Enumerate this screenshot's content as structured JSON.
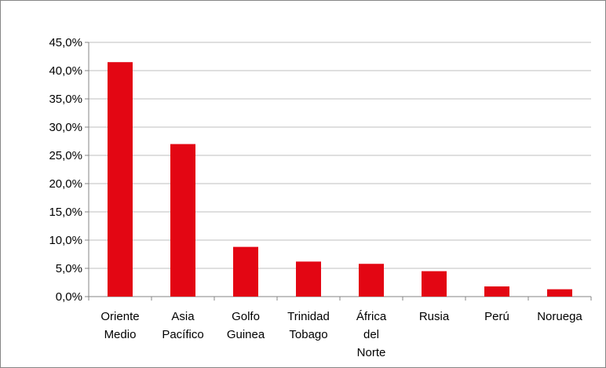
{
  "chart_data": {
    "type": "bar",
    "title": "",
    "xlabel": "",
    "ylabel": "",
    "categories": [
      [
        "Oriente",
        "Medio"
      ],
      [
        "Asia",
        "Pacífico"
      ],
      [
        "Golfo",
        "Guinea"
      ],
      [
        "Trinidad",
        "Tobago"
      ],
      [
        "África",
        "del",
        "Norte"
      ],
      [
        "Rusia"
      ],
      [
        "Perú"
      ],
      [
        "Noruega"
      ]
    ],
    "values": [
      41.5,
      27.0,
      8.8,
      6.2,
      5.8,
      4.5,
      1.8,
      1.3
    ],
    "ylim": [
      0,
      45
    ],
    "yticks": [
      "0,0%",
      "5,0%",
      "10,0%",
      "15,0%",
      "20,0%",
      "25,0%",
      "30,0%",
      "35,0%",
      "40,0%",
      "45,0%"
    ],
    "grid": true,
    "bar_color": "#E30613",
    "gridline_color": "#BFBFBF"
  }
}
